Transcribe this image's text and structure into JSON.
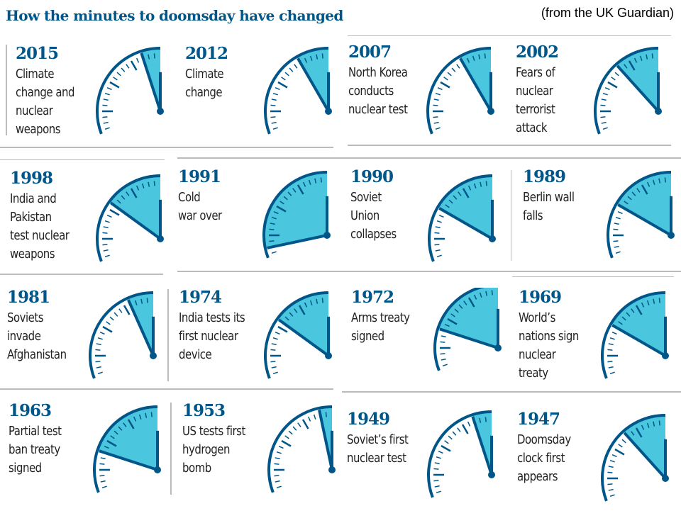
{
  "title": "How the minutes to doomsday have changed",
  "source": "(from the UK Guardian)",
  "colors": {
    "accent": "#005689",
    "fill": "#4bc6df"
  },
  "chart_data": {
    "type": "clock-dials",
    "unit": "minutes to midnight",
    "items": [
      {
        "year": "2015",
        "text": "Climate\nchange and\nnuclear\nweapons",
        "minutes": 3
      },
      {
        "year": "2012",
        "text": "Climate\nchange",
        "minutes": 5
      },
      {
        "year": "2007",
        "text": "North Korea\nconducts\nnuclear test",
        "minutes": 5
      },
      {
        "year": "2002",
        "text": "Fears of\nnuclear\nterrorist\nattack",
        "minutes": 7
      },
      {
        "year": "1998",
        "text": "India and\nPakistan\ntest nuclear\nweapons",
        "minutes": 9
      },
      {
        "year": "1991",
        "text": "Cold\nwar over",
        "minutes": 17
      },
      {
        "year": "1990",
        "text": "Soviet\nUnion\ncollapses",
        "minutes": 10
      },
      {
        "year": "1989",
        "text": "Berlin wall\nfalls",
        "minutes": 10
      },
      {
        "year": "1981",
        "text": "Soviets\ninvade\nAfghanistan",
        "minutes": 4
      },
      {
        "year": "1974",
        "text": "India tests its\nfirst nuclear\ndevice",
        "minutes": 9
      },
      {
        "year": "1972",
        "text": "Arms treaty\nsigned",
        "minutes": 12
      },
      {
        "year": "1969",
        "text": "World’s\nnations sign\nnuclear\ntreaty",
        "minutes": 10
      },
      {
        "year": "1963",
        "text": "Partial test\nban treaty\nsigned",
        "minutes": 12
      },
      {
        "year": "1953",
        "text": "US tests first\nhydrogen\nbomb",
        "minutes": 2
      },
      {
        "year": "1949",
        "text": "Soviet’s first\nnuclear test",
        "minutes": 3
      },
      {
        "year": "1947",
        "text": "Doomsday\nclock first\nappears",
        "minutes": 7
      }
    ]
  }
}
